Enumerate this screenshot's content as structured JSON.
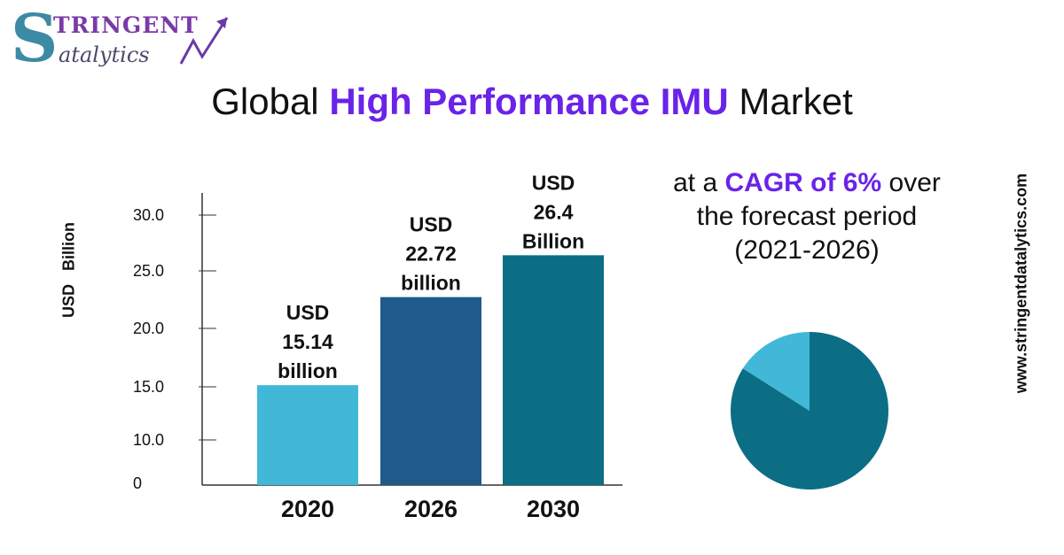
{
  "brand": {
    "logo_initial": "S",
    "logo_top": "TRINGENT",
    "logo_bottom": "atalytics"
  },
  "title": {
    "prefix": "Global ",
    "highlight": "High Performance IMU",
    "suffix": " Market"
  },
  "colors": {
    "accent": "#6a23e8",
    "bar_2020": "#42b8d8",
    "bar_2026": "#1f5a8a",
    "bar_2030": "#0b6e84",
    "pie_main": "#0b6e84",
    "pie_slice": "#42b8d8",
    "axis": "#333333"
  },
  "cagr": {
    "prefix": "at a ",
    "highlight": "CAGR of 6%",
    "suffix": " over",
    "line2": "the forecast period",
    "line3": "(2021-2026)"
  },
  "website": "www.stringentdatalytics.com",
  "chart_data": [
    {
      "type": "bar",
      "ylabel": "USD Billion",
      "categories": [
        "2020",
        "2026",
        "2030"
      ],
      "values": [
        15.14,
        22.72,
        26.4
      ],
      "data_labels": [
        [
          "USD",
          "15.14",
          "billion"
        ],
        [
          "USD",
          "22.72",
          "billion"
        ],
        [
          "USD",
          "26.4",
          "Billion"
        ]
      ],
      "y_ticks": [
        {
          "value": 0,
          "label": "0"
        },
        {
          "value": 10,
          "label": "10.0"
        },
        {
          "value": 15,
          "label": "15.0"
        },
        {
          "value": 20,
          "label": "20.0"
        },
        {
          "value": 25,
          "label": "25.0"
        },
        {
          "value": 30,
          "label": "30.0"
        }
      ],
      "ylim": [
        0,
        30
      ],
      "grid": false,
      "legend": "none"
    },
    {
      "type": "pie",
      "values": [
        84,
        16
      ],
      "legend": "none"
    }
  ]
}
